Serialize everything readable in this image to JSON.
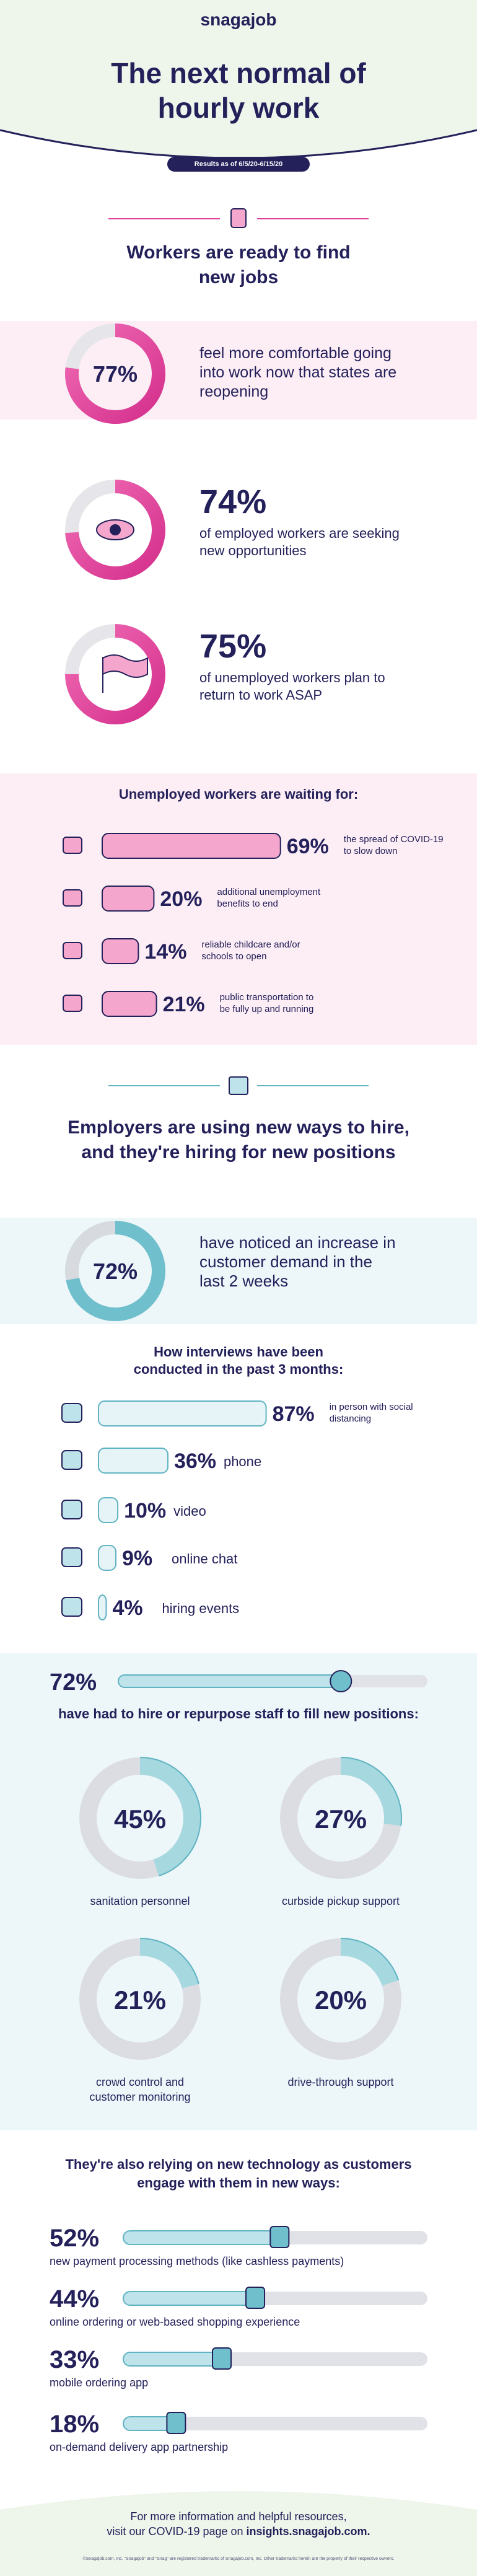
{
  "header": {
    "logo": "snagajob",
    "title": "The next normal of hourly work",
    "date_badge": "Results as of 6/5/20-6/15/20"
  },
  "workers": {
    "heading": "Workers are ready to find new jobs",
    "stats": [
      {
        "value": 77,
        "label": "77%",
        "text": "feel more comfortable going into work now that states are reopening"
      },
      {
        "value": 74,
        "label": "74%",
        "text": "of employed workers are seeking new opportunities"
      },
      {
        "value": 75,
        "label": "75%",
        "text": "of unemployed workers plan to return to work ASAP"
      }
    ],
    "waiting": {
      "heading": "Unemployed workers are waiting for:",
      "items": [
        {
          "value": 69,
          "label": "69%",
          "text": "the spread of COVID-19 to slow down"
        },
        {
          "value": 20,
          "label": "20%",
          "text": "additional unemployment benefits to end"
        },
        {
          "value": 14,
          "label": "14%",
          "text": "reliable childcare and/or schools to open"
        },
        {
          "value": 21,
          "label": "21%",
          "text": "public transportation to be fully up and running"
        }
      ]
    }
  },
  "employers": {
    "heading": "Employers are using new ways to hire, and they're hiring for new positions",
    "demand": {
      "value": 72,
      "label": "72%",
      "text": "have noticed an increase in customer demand in the last 2 weeks"
    },
    "interviews": {
      "heading": "How interviews have been conducted in the past 3 months:",
      "items": [
        {
          "value": 87,
          "label": "87%",
          "text": "in person with social distancing"
        },
        {
          "value": 36,
          "label": "36%",
          "text": "phone"
        },
        {
          "value": 10,
          "label": "10%",
          "text": "video"
        },
        {
          "value": 9,
          "label": "9%",
          "text": "online chat"
        },
        {
          "value": 4,
          "label": "4%",
          "text": "hiring events"
        }
      ]
    },
    "hiring": {
      "value": 72,
      "label": "72%",
      "text": "have had to hire or repurpose staff to fill new positions:",
      "roles": [
        {
          "value": 45,
          "label": "45%",
          "text": "sanitation personnel"
        },
        {
          "value": 27,
          "label": "27%",
          "text": "curbside pickup support"
        },
        {
          "value": 21,
          "label": "21%",
          "text": "crowd control and customer monitoring"
        },
        {
          "value": 20,
          "label": "20%",
          "text": "drive-through support"
        }
      ]
    }
  },
  "technology": {
    "heading": "They're also relying on new technology as customers engage with them in new ways:",
    "items": [
      {
        "value": 52,
        "label": "52%",
        "text": "new payment processing methods (like cashless payments)"
      },
      {
        "value": 44,
        "label": "44%",
        "text": "online ordering or web-based shopping experience"
      },
      {
        "value": 33,
        "label": "33%",
        "text": "mobile ordering app"
      },
      {
        "value": 18,
        "label": "18%",
        "text": "on-demand delivery app partnership"
      }
    ]
  },
  "footer": {
    "lines": [
      "For more information and helpful resources,",
      "visit our COVID-19 page on"
    ],
    "link": "insights.snagajob.com.",
    "legal": "©Snagajob.com, Inc. \"Snagajob\" and \"Snag\" are registered trademarks of Snagajob.com, Inc. Other trademarks herein are the property of their respective owners."
  }
}
